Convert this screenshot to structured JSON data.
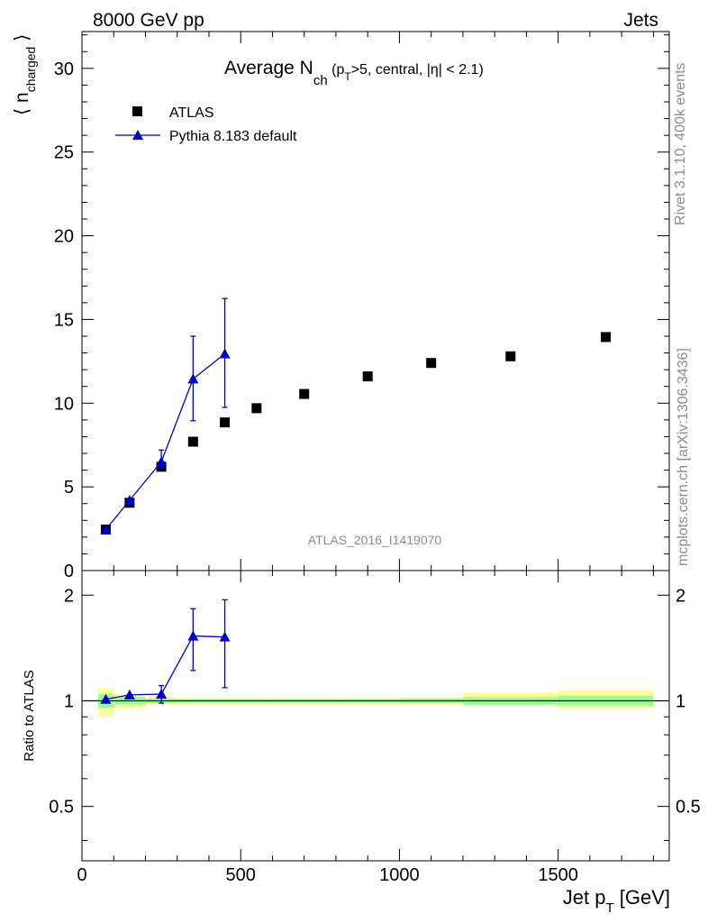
{
  "header": {
    "left": "8000 GeV pp",
    "right": "Jets"
  },
  "side_labels": {
    "top": "Rivet 3.1.10,  400k events",
    "bottom": "mcplots.cern.ch [arXiv:1306.3436]"
  },
  "watermark": "ATLAS_2016_I1419070",
  "chart_data": [
    {
      "type": "scatter",
      "panel": "main",
      "title_parts": {
        "pre": "Average N",
        "sub1": "ch",
        "mid1": " (p",
        "sub2": "T",
        "post": ">5, central, |η| < 2.1)"
      },
      "ylabel_parts": {
        "pre": "⟨ n",
        "sub": "charged",
        "post": " ⟩"
      },
      "xlim": [
        0,
        1850
      ],
      "ylim": [
        0,
        32.2
      ],
      "yticks": [
        0,
        5,
        10,
        15,
        20,
        25,
        30
      ],
      "ytick_labels": [
        "0",
        "5",
        "10",
        "15",
        "20",
        "25",
        "30"
      ],
      "legend_position": "top-left",
      "series": [
        {
          "name": "ATLAS",
          "marker": "square",
          "color": "#000000",
          "x": [
            75,
            150,
            250,
            350,
            450,
            550,
            700,
            900,
            1100,
            1350,
            1650
          ],
          "y": [
            2.45,
            4.05,
            6.2,
            7.7,
            8.85,
            9.7,
            10.55,
            11.6,
            12.4,
            12.8,
            13.95
          ]
        },
        {
          "name": "Pythia 8.183 default",
          "marker": "triangle",
          "color": "#0000cc",
          "x": [
            75,
            150,
            250,
            350,
            450
          ],
          "y": [
            2.45,
            4.2,
            6.5,
            11.45,
            12.95
          ],
          "yerr_low": [
            0.0,
            0.1,
            0.35,
            2.5,
            3.2
          ],
          "yerr_high": [
            0.0,
            0.1,
            0.7,
            2.55,
            3.3
          ]
        }
      ]
    },
    {
      "type": "scatter",
      "panel": "ratio",
      "ylabel": "Ratio to ATLAS",
      "xlabel_parts": {
        "pre": "Jet p",
        "sub": "T",
        "post": " [GeV]"
      },
      "xlim": [
        0,
        1850
      ],
      "ylim": [
        0.35,
        2.35
      ],
      "xticks": [
        0,
        500,
        1000,
        1500
      ],
      "xtick_labels": [
        "0",
        "500",
        "1000",
        "1500"
      ],
      "yticks": [
        0.5,
        1,
        2
      ],
      "ytick_labels": [
        "0.5",
        "1",
        "2"
      ],
      "bands": {
        "bins": [
          [
            50,
            100
          ],
          [
            100,
            200
          ],
          [
            200,
            300
          ],
          [
            300,
            400
          ],
          [
            400,
            500
          ],
          [
            500,
            600
          ],
          [
            600,
            800
          ],
          [
            800,
            1000
          ],
          [
            1000,
            1200
          ],
          [
            1200,
            1500
          ],
          [
            1500,
            1800
          ]
        ],
        "green": [
          [
            0.955,
            1.045
          ],
          [
            0.975,
            1.025
          ],
          [
            0.985,
            1.015
          ],
          [
            0.99,
            1.01
          ],
          [
            0.99,
            1.01
          ],
          [
            0.99,
            1.01
          ],
          [
            0.99,
            1.01
          ],
          [
            0.99,
            1.01
          ],
          [
            0.985,
            1.015
          ],
          [
            0.975,
            1.025
          ],
          [
            0.97,
            1.035
          ]
        ],
        "yellow": [
          [
            0.905,
            1.09
          ],
          [
            0.955,
            1.045
          ],
          [
            0.975,
            1.025
          ],
          [
            0.98,
            1.02
          ],
          [
            0.98,
            1.02
          ],
          [
            0.98,
            1.02
          ],
          [
            0.98,
            1.02
          ],
          [
            0.98,
            1.02
          ],
          [
            0.975,
            1.025
          ],
          [
            0.97,
            1.055
          ],
          [
            0.955,
            1.075
          ]
        ]
      },
      "series": [
        {
          "name": "Pythia 8.183 default",
          "marker": "triangle",
          "color": "#0000cc",
          "x": [
            75,
            150,
            250,
            350,
            450
          ],
          "y": [
            1.01,
            1.04,
            1.045,
            1.53,
            1.52
          ],
          "yerr_low": [
            0.0,
            0.0,
            0.06,
            0.31,
            0.43
          ],
          "yerr_high": [
            0.0,
            0.0,
            0.06,
            0.3,
            0.42
          ]
        }
      ]
    }
  ]
}
